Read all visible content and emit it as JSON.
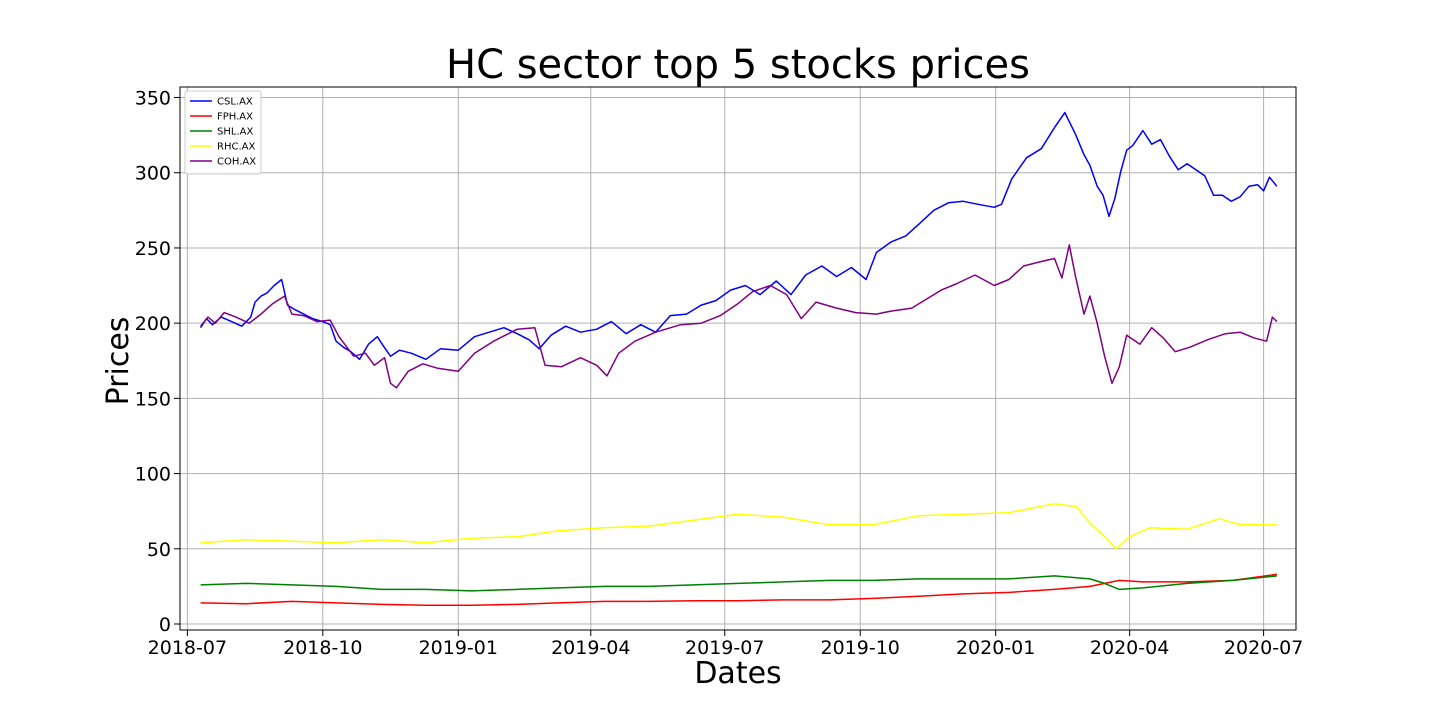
{
  "chart_data": {
    "type": "line",
    "title": "HC sector top 5 stocks prices",
    "xlabel": "Dates",
    "ylabel": "Prices",
    "x_range": [
      "2018-06-26",
      "2020-07-23"
    ],
    "ylim": [
      -4,
      357
    ],
    "x_ticks": [
      "2018-07",
      "2018-10",
      "2019-01",
      "2019-04",
      "2019-07",
      "2019-10",
      "2020-01",
      "2020-04",
      "2020-07"
    ],
    "y_ticks": [
      0,
      50,
      100,
      150,
      200,
      250,
      300,
      350
    ],
    "grid": true,
    "legend_position": "top-left",
    "series": [
      {
        "name": "CSL.AX",
        "color": "#0000ff",
        "points": [
          [
            "2018-07-10",
            197
          ],
          [
            "2018-07-14",
            203
          ],
          [
            "2018-07-18",
            199
          ],
          [
            "2018-07-24",
            204
          ],
          [
            "2018-07-31",
            201
          ],
          [
            "2018-08-07",
            198
          ],
          [
            "2018-08-13",
            204
          ],
          [
            "2018-08-16",
            214
          ],
          [
            "2018-08-20",
            218
          ],
          [
            "2018-08-24",
            220
          ],
          [
            "2018-08-29",
            225
          ],
          [
            "2018-09-03",
            229
          ],
          [
            "2018-09-07",
            212
          ],
          [
            "2018-09-12",
            209
          ],
          [
            "2018-09-18",
            206
          ],
          [
            "2018-09-24",
            203
          ],
          [
            "2018-10-01",
            201
          ],
          [
            "2018-10-06",
            199
          ],
          [
            "2018-10-10",
            188
          ],
          [
            "2018-10-15",
            184
          ],
          [
            "2018-10-20",
            181
          ],
          [
            "2018-10-26",
            176
          ],
          [
            "2018-11-01",
            186
          ],
          [
            "2018-11-07",
            191
          ],
          [
            "2018-11-11",
            185
          ],
          [
            "2018-11-16",
            178
          ],
          [
            "2018-11-22",
            182
          ],
          [
            "2018-11-30",
            180
          ],
          [
            "2018-12-10",
            176
          ],
          [
            "2018-12-20",
            183
          ],
          [
            "2019-01-01",
            182
          ],
          [
            "2019-01-12",
            191
          ],
          [
            "2019-01-22",
            194
          ],
          [
            "2019-02-01",
            197
          ],
          [
            "2019-02-10",
            193
          ],
          [
            "2019-02-18",
            189
          ],
          [
            "2019-02-25",
            183
          ],
          [
            "2019-03-05",
            192
          ],
          [
            "2019-03-15",
            198
          ],
          [
            "2019-03-25",
            194
          ],
          [
            "2019-04-05",
            196
          ],
          [
            "2019-04-15",
            201
          ],
          [
            "2019-04-25",
            193
          ],
          [
            "2019-05-05",
            199
          ],
          [
            "2019-05-15",
            194
          ],
          [
            "2019-05-25",
            205
          ],
          [
            "2019-06-05",
            206
          ],
          [
            "2019-06-15",
            212
          ],
          [
            "2019-06-25",
            215
          ],
          [
            "2019-07-05",
            222
          ],
          [
            "2019-07-15",
            225
          ],
          [
            "2019-07-25",
            219
          ],
          [
            "2019-08-05",
            228
          ],
          [
            "2019-08-15",
            219
          ],
          [
            "2019-08-25",
            232
          ],
          [
            "2019-09-05",
            238
          ],
          [
            "2019-09-15",
            231
          ],
          [
            "2019-09-25",
            237
          ],
          [
            "2019-10-05",
            229
          ],
          [
            "2019-10-12",
            247
          ],
          [
            "2019-10-22",
            254
          ],
          [
            "2019-11-01",
            258
          ],
          [
            "2019-11-10",
            266
          ],
          [
            "2019-11-20",
            275
          ],
          [
            "2019-11-30",
            280
          ],
          [
            "2019-12-10",
            281
          ],
          [
            "2019-12-20",
            279
          ],
          [
            "2019-12-31",
            277
          ],
          [
            "2020-01-05",
            279
          ],
          [
            "2020-01-12",
            296
          ],
          [
            "2020-01-22",
            310
          ],
          [
            "2020-02-01",
            316
          ],
          [
            "2020-02-10",
            330
          ],
          [
            "2020-02-17",
            340
          ],
          [
            "2020-02-24",
            326
          ],
          [
            "2020-03-01",
            312
          ],
          [
            "2020-03-05",
            305
          ],
          [
            "2020-03-10",
            291
          ],
          [
            "2020-03-14",
            285
          ],
          [
            "2020-03-18",
            271
          ],
          [
            "2020-03-22",
            283
          ],
          [
            "2020-03-26",
            301
          ],
          [
            "2020-03-30",
            315
          ],
          [
            "2020-04-03",
            318
          ],
          [
            "2020-04-10",
            328
          ],
          [
            "2020-04-16",
            319
          ],
          [
            "2020-04-22",
            322
          ],
          [
            "2020-04-28",
            311
          ],
          [
            "2020-05-04",
            302
          ],
          [
            "2020-05-10",
            306
          ],
          [
            "2020-05-16",
            302
          ],
          [
            "2020-05-22",
            298
          ],
          [
            "2020-05-28",
            285
          ],
          [
            "2020-06-03",
            285
          ],
          [
            "2020-06-09",
            281
          ],
          [
            "2020-06-15",
            284
          ],
          [
            "2020-06-21",
            291
          ],
          [
            "2020-06-27",
            292
          ],
          [
            "2020-07-01",
            288
          ],
          [
            "2020-07-05",
            297
          ],
          [
            "2020-07-10",
            291
          ]
        ]
      },
      {
        "name": "FPH.AX",
        "color": "#ff0000",
        "points": [
          [
            "2018-07-10",
            14
          ],
          [
            "2018-08-10",
            13.5
          ],
          [
            "2018-09-10",
            15
          ],
          [
            "2018-10-10",
            14
          ],
          [
            "2018-11-10",
            13
          ],
          [
            "2018-12-10",
            12.5
          ],
          [
            "2019-01-10",
            12.5
          ],
          [
            "2019-02-10",
            13
          ],
          [
            "2019-03-10",
            14
          ],
          [
            "2019-04-10",
            15
          ],
          [
            "2019-05-10",
            15
          ],
          [
            "2019-06-10",
            15.5
          ],
          [
            "2019-07-10",
            15.5
          ],
          [
            "2019-08-10",
            16
          ],
          [
            "2019-09-10",
            16
          ],
          [
            "2019-10-10",
            17
          ],
          [
            "2019-11-10",
            18.5
          ],
          [
            "2019-12-10",
            20
          ],
          [
            "2020-01-10",
            21
          ],
          [
            "2020-02-10",
            23
          ],
          [
            "2020-03-05",
            25
          ],
          [
            "2020-03-15",
            27
          ],
          [
            "2020-03-25",
            29
          ],
          [
            "2020-04-10",
            28
          ],
          [
            "2020-05-10",
            28
          ],
          [
            "2020-06-10",
            29
          ],
          [
            "2020-07-10",
            33
          ]
        ]
      },
      {
        "name": "SHL.AX",
        "color": "#008000",
        "points": [
          [
            "2018-07-10",
            26
          ],
          [
            "2018-08-10",
            27
          ],
          [
            "2018-09-10",
            26
          ],
          [
            "2018-10-10",
            25
          ],
          [
            "2018-11-10",
            23
          ],
          [
            "2018-12-10",
            23
          ],
          [
            "2019-01-10",
            22
          ],
          [
            "2019-02-10",
            23
          ],
          [
            "2019-03-10",
            24
          ],
          [
            "2019-04-10",
            25
          ],
          [
            "2019-05-10",
            25
          ],
          [
            "2019-06-10",
            26
          ],
          [
            "2019-07-10",
            27
          ],
          [
            "2019-08-10",
            28
          ],
          [
            "2019-09-10",
            29
          ],
          [
            "2019-10-10",
            29
          ],
          [
            "2019-11-10",
            30
          ],
          [
            "2019-12-10",
            30
          ],
          [
            "2020-01-10",
            30
          ],
          [
            "2020-02-10",
            32
          ],
          [
            "2020-03-05",
            30
          ],
          [
            "2020-03-15",
            27
          ],
          [
            "2020-03-25",
            23
          ],
          [
            "2020-04-10",
            24
          ],
          [
            "2020-05-10",
            27
          ],
          [
            "2020-06-10",
            29
          ],
          [
            "2020-07-10",
            32
          ]
        ]
      },
      {
        "name": "RHC.AX",
        "color": "#ffff00",
        "points": [
          [
            "2018-07-10",
            54
          ],
          [
            "2018-08-10",
            56
          ],
          [
            "2018-09-10",
            55
          ],
          [
            "2018-10-10",
            54
          ],
          [
            "2018-11-10",
            56
          ],
          [
            "2018-12-10",
            54
          ],
          [
            "2019-01-10",
            57
          ],
          [
            "2019-02-10",
            58
          ],
          [
            "2019-03-10",
            62
          ],
          [
            "2019-04-10",
            64
          ],
          [
            "2019-05-10",
            65
          ],
          [
            "2019-06-10",
            69
          ],
          [
            "2019-07-10",
            73
          ],
          [
            "2019-08-10",
            71
          ],
          [
            "2019-09-10",
            66
          ],
          [
            "2019-10-10",
            66
          ],
          [
            "2019-11-10",
            72
          ],
          [
            "2019-12-10",
            73
          ],
          [
            "2020-01-10",
            74
          ],
          [
            "2020-02-10",
            80
          ],
          [
            "2020-02-25",
            78
          ],
          [
            "2020-03-05",
            67
          ],
          [
            "2020-03-15",
            58
          ],
          [
            "2020-03-23",
            50
          ],
          [
            "2020-04-01",
            58
          ],
          [
            "2020-04-15",
            64
          ],
          [
            "2020-05-10",
            63
          ],
          [
            "2020-06-01",
            70
          ],
          [
            "2020-06-15",
            66
          ],
          [
            "2020-07-10",
            66
          ]
        ]
      },
      {
        "name": "COH.AX",
        "color": "#800080",
        "points": [
          [
            "2018-07-10",
            198
          ],
          [
            "2018-07-15",
            204
          ],
          [
            "2018-07-20",
            200
          ],
          [
            "2018-07-26",
            207
          ],
          [
            "2018-08-03",
            204
          ],
          [
            "2018-08-12",
            200
          ],
          [
            "2018-08-20",
            206
          ],
          [
            "2018-08-28",
            213
          ],
          [
            "2018-09-05",
            218
          ],
          [
            "2018-09-10",
            206
          ],
          [
            "2018-09-18",
            205
          ],
          [
            "2018-09-27",
            201
          ],
          [
            "2018-10-06",
            202
          ],
          [
            "2018-10-12",
            191
          ],
          [
            "2018-10-22",
            178
          ],
          [
            "2018-10-30",
            180
          ],
          [
            "2018-11-05",
            172
          ],
          [
            "2018-11-12",
            177
          ],
          [
            "2018-11-16",
            160
          ],
          [
            "2018-11-20",
            157
          ],
          [
            "2018-11-28",
            168
          ],
          [
            "2018-12-08",
            173
          ],
          [
            "2018-12-18",
            170
          ],
          [
            "2019-01-01",
            168
          ],
          [
            "2019-01-12",
            180
          ],
          [
            "2019-01-25",
            188
          ],
          [
            "2019-02-10",
            196
          ],
          [
            "2019-02-22",
            197
          ],
          [
            "2019-03-01",
            172
          ],
          [
            "2019-03-12",
            171
          ],
          [
            "2019-03-25",
            177
          ],
          [
            "2019-04-05",
            172
          ],
          [
            "2019-04-12",
            165
          ],
          [
            "2019-04-20",
            180
          ],
          [
            "2019-05-01",
            188
          ],
          [
            "2019-05-15",
            194
          ],
          [
            "2019-06-01",
            199
          ],
          [
            "2019-06-15",
            200
          ],
          [
            "2019-06-28",
            205
          ],
          [
            "2019-07-10",
            213
          ],
          [
            "2019-07-20",
            221
          ],
          [
            "2019-08-01",
            225
          ],
          [
            "2019-08-12",
            219
          ],
          [
            "2019-08-22",
            203
          ],
          [
            "2019-09-01",
            214
          ],
          [
            "2019-09-15",
            210
          ],
          [
            "2019-09-28",
            207
          ],
          [
            "2019-10-12",
            206
          ],
          [
            "2019-10-22",
            208
          ],
          [
            "2019-11-05",
            210
          ],
          [
            "2019-11-15",
            216
          ],
          [
            "2019-11-25",
            222
          ],
          [
            "2019-12-05",
            226
          ],
          [
            "2019-12-18",
            232
          ],
          [
            "2019-12-31",
            225
          ],
          [
            "2020-01-10",
            229
          ],
          [
            "2020-01-20",
            238
          ],
          [
            "2020-02-01",
            241
          ],
          [
            "2020-02-10",
            243
          ],
          [
            "2020-02-15",
            230
          ],
          [
            "2020-02-20",
            252
          ],
          [
            "2020-02-24",
            232
          ],
          [
            "2020-03-01",
            206
          ],
          [
            "2020-03-05",
            218
          ],
          [
            "2020-03-10",
            200
          ],
          [
            "2020-03-15",
            178
          ],
          [
            "2020-03-20",
            160
          ],
          [
            "2020-03-25",
            171
          ],
          [
            "2020-03-30",
            192
          ],
          [
            "2020-04-08",
            186
          ],
          [
            "2020-04-16",
            197
          ],
          [
            "2020-04-24",
            190
          ],
          [
            "2020-05-02",
            181
          ],
          [
            "2020-05-12",
            184
          ],
          [
            "2020-05-24",
            189
          ],
          [
            "2020-06-05",
            193
          ],
          [
            "2020-06-15",
            194
          ],
          [
            "2020-06-25",
            190
          ],
          [
            "2020-07-03",
            188
          ],
          [
            "2020-07-07",
            204
          ],
          [
            "2020-07-10",
            201
          ]
        ]
      }
    ]
  }
}
